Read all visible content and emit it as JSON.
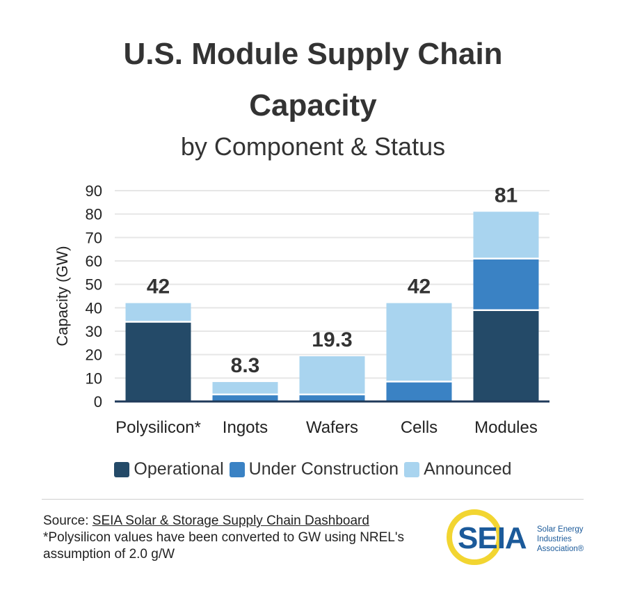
{
  "title_line1": "U.S. Module Supply Chain",
  "title_line2": "Capacity",
  "subtitle": "by Component & Status",
  "colors": {
    "operational": "#244a68",
    "under_construction": "#3a82c4",
    "announced": "#a9d4ef",
    "axis": "#1f3a5a",
    "grid": "#e6e6e6"
  },
  "chart_data": {
    "type": "bar",
    "stacked": true,
    "categories": [
      "Polysilicon*",
      "Ingots",
      "Wafers",
      "Cells",
      "Modules"
    ],
    "series": [
      {
        "name": "Operational",
        "values": [
          34,
          0,
          0,
          0,
          39
        ]
      },
      {
        "name": "Under Construction",
        "values": [
          0,
          3,
          3,
          8.5,
          22
        ]
      },
      {
        "name": "Announced",
        "values": [
          8,
          5.3,
          16.3,
          33.5,
          20
        ]
      }
    ],
    "totals": [
      42,
      8.3,
      19.3,
      42,
      81
    ],
    "total_labels": [
      "42",
      "8.3",
      "19.3",
      "42",
      "81"
    ],
    "ylabel": "Capacity (GW)",
    "xlabel": "",
    "ylim": [
      0,
      90
    ],
    "yticks": [
      0,
      10,
      20,
      30,
      40,
      50,
      60,
      70,
      80,
      90
    ],
    "grid": true,
    "legend_position": "bottom"
  },
  "legend": [
    "Operational",
    "Under Construction",
    "Announced"
  ],
  "source": {
    "prefix": "Source: ",
    "link": "SEIA Solar & Storage Supply Chain Dashboard",
    "note": "*Polysilicon values have been converted to GW using NREL's assumption of 2.0 g/W"
  },
  "logo": {
    "wordmark": "SEIA",
    "line1": "Solar Energy",
    "line2": "Industries",
    "line3": "Association®"
  }
}
